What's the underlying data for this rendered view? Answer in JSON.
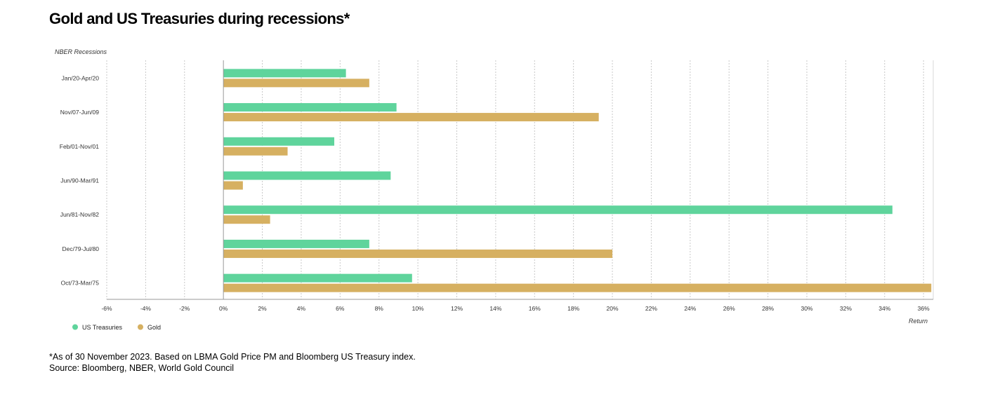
{
  "title": "Gold and US Treasuries during recessions*",
  "footnote": {
    "line1": "*As of 30 November 2023. Based on LBMA Gold Price PM and Bloomberg US Treasury index.",
    "line2": "Source: Bloomberg, NBER, World Gold Council"
  },
  "chart_data": {
    "type": "bar",
    "orientation": "horizontal",
    "ylabel": "NBER Recessions",
    "xlabel": "Return",
    "xlim": [
      -6,
      36.5
    ],
    "xticks": [
      "-6%",
      "-4%",
      "-2%",
      "0%",
      "2%",
      "4%",
      "6%",
      "8%",
      "10%",
      "12%",
      "14%",
      "16%",
      "18%",
      "20%",
      "22%",
      "24%",
      "26%",
      "28%",
      "30%",
      "32%",
      "34%",
      "36%"
    ],
    "xtick_values": [
      -6,
      -4,
      -2,
      0,
      2,
      4,
      6,
      8,
      10,
      12,
      14,
      16,
      18,
      20,
      22,
      24,
      26,
      28,
      30,
      32,
      34,
      36
    ],
    "categories": [
      "Jan/20-Apr/20",
      "Nov/07-Jun/09",
      "Feb/01-Nov/01",
      "Jun/90-Mar/91",
      "Jun/81-Nov/82",
      "Dec/79-Jul/80",
      "Oct/73-Mar/75"
    ],
    "series": [
      {
        "name": "US Treasuries",
        "color": "#5fd49c",
        "values": [
          6.3,
          8.9,
          5.7,
          8.6,
          34.4,
          7.5,
          9.7
        ]
      },
      {
        "name": "Gold",
        "color": "#d6b061",
        "values": [
          7.5,
          19.3,
          3.3,
          1.0,
          2.4,
          20.0,
          36.4
        ]
      }
    ],
    "grid": true,
    "legend_position": "bottom-left"
  }
}
